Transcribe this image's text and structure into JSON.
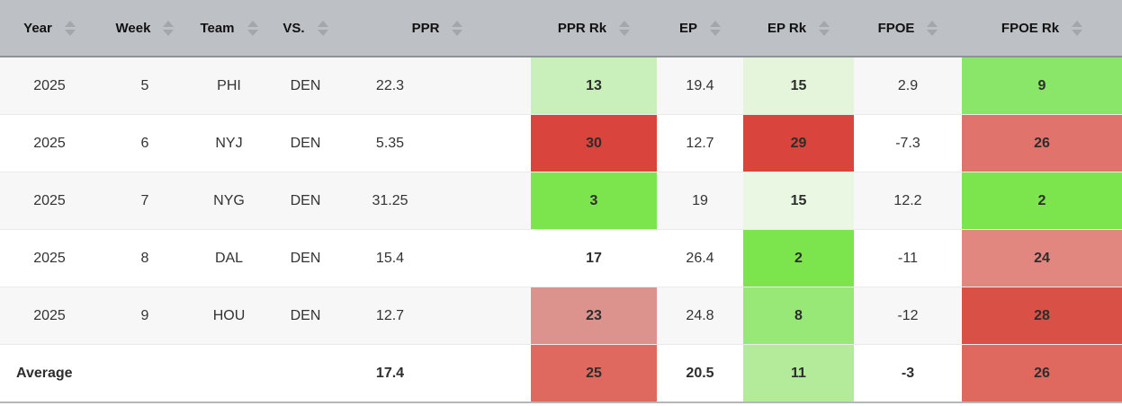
{
  "table": {
    "columns": [
      {
        "key": "year",
        "label": "Year"
      },
      {
        "key": "week",
        "label": "Week"
      },
      {
        "key": "team",
        "label": "Team"
      },
      {
        "key": "vs",
        "label": "VS."
      },
      {
        "key": "ppr",
        "label": "PPR"
      },
      {
        "key": "ppr_rk",
        "label": "PPR Rk"
      },
      {
        "key": "ep",
        "label": "EP"
      },
      {
        "key": "ep_rk",
        "label": "EP Rk"
      },
      {
        "key": "fpoe",
        "label": "FPOE"
      },
      {
        "key": "fpoe_rk",
        "label": "FPOE Rk"
      }
    ],
    "sort_icon": "up-down-arrows",
    "rows": [
      {
        "cells": {
          "year": "2025",
          "week": "5",
          "team": "PHI",
          "vs": "DEN",
          "ppr": "22.3",
          "ppr_rk": "13",
          "ep": "19.4",
          "ep_rk": "15",
          "fpoe": "2.9",
          "fpoe_rk": "9"
        },
        "cell_colors": {
          "ppr_rk": "#c9efbb",
          "ep_rk": "#e4f5dc",
          "fpoe_rk": "#8ae668"
        }
      },
      {
        "cells": {
          "year": "2025",
          "week": "6",
          "team": "NYJ",
          "vs": "DEN",
          "ppr": "5.35",
          "ppr_rk": "30",
          "ep": "12.7",
          "ep_rk": "29",
          "fpoe": "-7.3",
          "fpoe_rk": "26"
        },
        "cell_colors": {
          "ppr_rk": "#d9453c",
          "ep_rk": "#d9453c",
          "fpoe_rk": "#e0746d"
        }
      },
      {
        "cells": {
          "year": "2025",
          "week": "7",
          "team": "NYG",
          "vs": "DEN",
          "ppr": "31.25",
          "ppr_rk": "3",
          "ep": "19",
          "ep_rk": "15",
          "fpoe": "12.2",
          "fpoe_rk": "2"
        },
        "cell_colors": {
          "ppr_rk": "#7ce44d",
          "ep_rk": "#e9f7e3",
          "fpoe_rk": "#7ce44d"
        }
      },
      {
        "cells": {
          "year": "2025",
          "week": "8",
          "team": "DAL",
          "vs": "DEN",
          "ppr": "15.4",
          "ppr_rk": "17",
          "ep": "26.4",
          "ep_rk": "2",
          "fpoe": "-11",
          "fpoe_rk": "24"
        },
        "cell_colors": {
          "ep_rk": "#7ce44d",
          "fpoe_rk": "#e28680"
        }
      },
      {
        "cells": {
          "year": "2025",
          "week": "9",
          "team": "HOU",
          "vs": "DEN",
          "ppr": "12.7",
          "ppr_rk": "23",
          "ep": "24.8",
          "ep_rk": "8",
          "fpoe": "-12",
          "fpoe_rk": "28"
        },
        "cell_colors": {
          "ppr_rk": "#dc938e",
          "ep_rk": "#98e878",
          "fpoe_rk": "#d95046"
        }
      },
      {
        "average": true,
        "cells": {
          "year": "Average",
          "week": "",
          "team": "",
          "vs": "",
          "ppr": "17.4",
          "ppr_rk": "25",
          "ep": "20.5",
          "ep_rk": "11",
          "fpoe": "-3",
          "fpoe_rk": "26"
        },
        "cell_colors": {
          "ppr_rk": "#e0695f",
          "ep_rk": "#b3eb9b",
          "fpoe_rk": "#e0695f"
        }
      }
    ]
  },
  "theme": {
    "header_bg": "#bdc1c5",
    "header_border": "#8e9296",
    "sort_arrow_color": "#a2a7ab",
    "row_alt_bg": "#f7f7f7",
    "rank_best_green": "#7ce44d",
    "rank_worst_red": "#d9453c",
    "table_bottom_border": "#b4b7ba"
  }
}
